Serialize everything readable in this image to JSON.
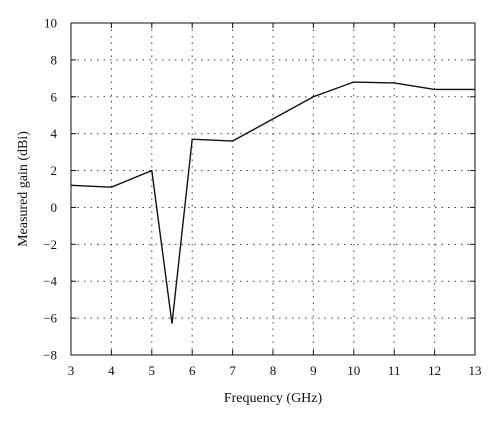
{
  "chart_data": {
    "type": "line",
    "title": "",
    "xlabel": "Frequency (GHz)",
    "ylabel": "Measured gain (dBi)",
    "xlim": [
      3,
      13
    ],
    "ylim": [
      -8,
      10
    ],
    "xticks": [
      3,
      4,
      5,
      6,
      7,
      8,
      9,
      10,
      11,
      12,
      13
    ],
    "yticks": [
      -8,
      -6,
      -4,
      -2,
      0,
      2,
      4,
      6,
      8,
      10
    ],
    "xtick_labels": [
      "3",
      "4",
      "5",
      "6",
      "7",
      "8",
      "9",
      "10",
      "11",
      "12",
      "13"
    ],
    "ytick_labels": [
      "−8",
      "−6",
      "−4",
      "−2",
      "0",
      "2",
      "4",
      "6",
      "8",
      "10"
    ],
    "grid": true,
    "legend": "none",
    "series": [
      {
        "x": [
          3,
          4,
          5,
          5.5,
          6,
          7,
          8,
          9,
          10,
          11,
          12,
          13
        ],
        "y": [
          1.2,
          1.1,
          2.0,
          -6.3,
          3.7,
          3.6,
          4.8,
          6.0,
          6.8,
          6.75,
          6.4,
          6.4
        ]
      }
    ]
  }
}
